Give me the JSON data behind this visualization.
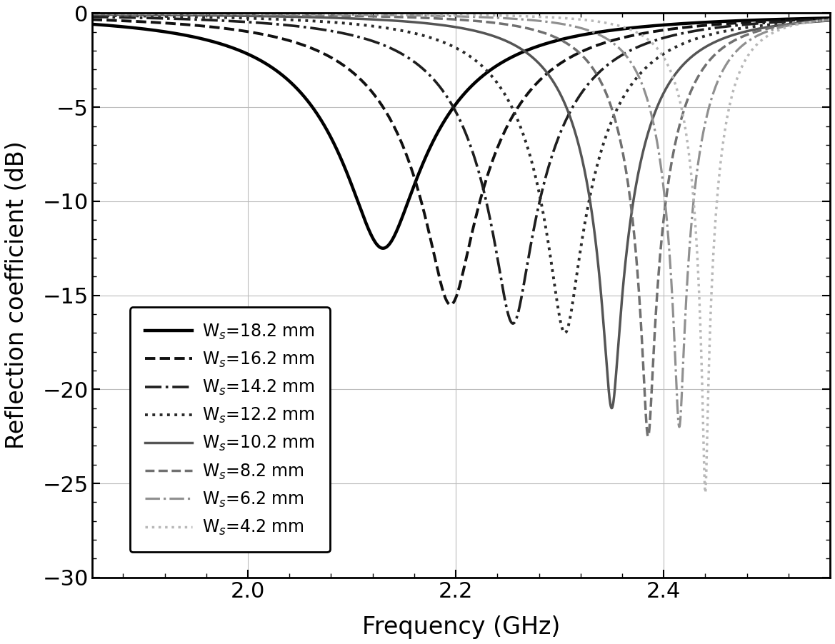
{
  "title": "",
  "xlabel": "Frequency (GHz)",
  "ylabel": "Reflection coefficient (dB)",
  "xlim": [
    1.85,
    2.56
  ],
  "ylim": [
    -30,
    0
  ],
  "xticks": [
    2.0,
    2.2,
    2.4
  ],
  "yticks": [
    0,
    -5,
    -10,
    -15,
    -20,
    -25,
    -30
  ],
  "background_color": "#ffffff",
  "grid_color": "#bbbbbb",
  "series": [
    {
      "label": "W$_s$=18.2 mm",
      "color": "#000000",
      "linestyle": "solid",
      "linewidth": 3.2,
      "f0": 2.13,
      "depth": -12.5,
      "bw": 0.22
    },
    {
      "label": "W$_s$=16.2 mm",
      "color": "#111111",
      "linestyle": "dashed",
      "linewidth": 2.8,
      "f0": 2.195,
      "depth": -15.5,
      "bw": 0.2
    },
    {
      "label": "W$_s$=14.2 mm",
      "color": "#1e1e1e",
      "linestyle": "dashdot",
      "linewidth": 2.6,
      "f0": 2.255,
      "depth": -16.5,
      "bw": 0.175
    },
    {
      "label": "W$_s$=12.2 mm",
      "color": "#2a2a2a",
      "linestyle": "dotted",
      "linewidth": 2.8,
      "f0": 2.305,
      "depth": -17.0,
      "bw": 0.155
    },
    {
      "label": "W$_s$=10.2 mm",
      "color": "#555555",
      "linestyle": "solid",
      "linewidth": 2.5,
      "f0": 2.35,
      "depth": -21.0,
      "bw": 0.13
    },
    {
      "label": "W$_s$=8.2 mm",
      "color": "#707070",
      "linestyle": "dashed",
      "linewidth": 2.5,
      "f0": 2.385,
      "depth": -22.5,
      "bw": 0.105
    },
    {
      "label": "W$_s$=6.2 mm",
      "color": "#909090",
      "linestyle": "dashdot",
      "linewidth": 2.3,
      "f0": 2.415,
      "depth": -22.0,
      "bw": 0.085
    },
    {
      "label": "W$_s$=4.2 mm",
      "color": "#b8b8b8",
      "linestyle": "dotted",
      "linewidth": 2.5,
      "f0": 2.44,
      "depth": -25.5,
      "bw": 0.068
    }
  ]
}
